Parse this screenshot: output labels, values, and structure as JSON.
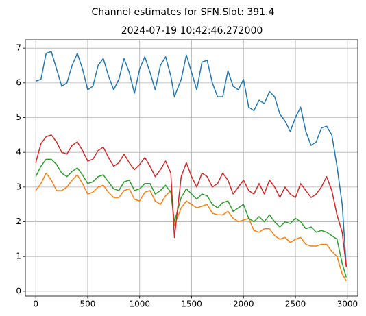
{
  "chart_data": {
    "type": "line",
    "title": "Channel estimates for SFN.Slot: 391.4",
    "subtitle": "2024-07-19 10:42:46.272000",
    "x": [
      0,
      50,
      100,
      150,
      200,
      250,
      300,
      350,
      400,
      450,
      500,
      550,
      600,
      650,
      700,
      750,
      800,
      850,
      900,
      950,
      1000,
      1050,
      1100,
      1150,
      1200,
      1250,
      1300,
      1335,
      1400,
      1450,
      1500,
      1550,
      1600,
      1650,
      1700,
      1750,
      1800,
      1850,
      1900,
      1950,
      2000,
      2050,
      2100,
      2150,
      2200,
      2250,
      2300,
      2350,
      2400,
      2450,
      2500,
      2550,
      2600,
      2650,
      2700,
      2750,
      2800,
      2850,
      2900,
      2950,
      2990
    ],
    "series": [
      {
        "color": "#1f77b4",
        "values": [
          6.05,
          6.1,
          6.85,
          6.9,
          6.4,
          5.9,
          6.0,
          6.5,
          6.85,
          6.4,
          5.8,
          5.9,
          6.5,
          6.7,
          6.2,
          5.8,
          6.1,
          6.7,
          6.3,
          5.7,
          6.4,
          6.75,
          6.3,
          5.8,
          6.5,
          6.75,
          6.2,
          5.6,
          6.1,
          6.8,
          6.3,
          5.8,
          6.6,
          6.65,
          6.0,
          5.6,
          5.6,
          6.35,
          5.9,
          5.8,
          6.1,
          5.3,
          5.2,
          5.5,
          5.4,
          5.75,
          5.6,
          5.1,
          4.9,
          4.6,
          5.0,
          5.3,
          4.6,
          4.2,
          4.3,
          4.7,
          4.75,
          4.5,
          3.6,
          2.5,
          0.7
        ]
      },
      {
        "color": "#ff7f0e",
        "values": [
          2.9,
          3.1,
          3.4,
          3.2,
          2.9,
          2.9,
          3.0,
          3.2,
          3.35,
          3.1,
          2.8,
          2.85,
          3.0,
          3.05,
          2.85,
          2.7,
          2.7,
          2.9,
          2.95,
          2.65,
          2.6,
          2.85,
          2.9,
          2.6,
          2.5,
          2.75,
          2.9,
          1.9,
          2.4,
          2.6,
          2.5,
          2.4,
          2.45,
          2.5,
          2.25,
          2.2,
          2.2,
          2.3,
          2.1,
          2.0,
          2.05,
          2.1,
          1.75,
          1.7,
          1.8,
          1.8,
          1.6,
          1.5,
          1.55,
          1.4,
          1.5,
          1.55,
          1.35,
          1.3,
          1.3,
          1.35,
          1.35,
          1.15,
          1.0,
          0.5,
          0.3
        ]
      },
      {
        "color": "#2ca02c",
        "values": [
          3.3,
          3.6,
          3.8,
          3.8,
          3.65,
          3.4,
          3.3,
          3.45,
          3.55,
          3.35,
          3.1,
          3.15,
          3.3,
          3.35,
          3.15,
          2.95,
          2.9,
          3.15,
          3.2,
          2.9,
          2.95,
          3.1,
          3.1,
          2.8,
          2.9,
          3.05,
          2.85,
          2.0,
          2.7,
          2.95,
          2.8,
          2.65,
          2.8,
          2.75,
          2.5,
          2.4,
          2.55,
          2.6,
          2.3,
          2.4,
          2.5,
          2.1,
          2.0,
          2.15,
          2.0,
          2.2,
          2.0,
          1.85,
          2.0,
          1.95,
          2.1,
          2.0,
          1.8,
          1.85,
          1.7,
          1.75,
          1.7,
          1.6,
          1.5,
          0.8,
          0.4
        ]
      },
      {
        "color": "#d62728",
        "values": [
          3.7,
          4.25,
          4.45,
          4.5,
          4.3,
          4.0,
          3.95,
          4.2,
          4.3,
          4.05,
          3.75,
          3.8,
          4.05,
          4.15,
          3.85,
          3.6,
          3.7,
          3.95,
          3.7,
          3.5,
          3.65,
          3.85,
          3.6,
          3.3,
          3.5,
          3.75,
          3.4,
          1.55,
          3.3,
          3.7,
          3.3,
          3.0,
          3.4,
          3.3,
          3.0,
          3.1,
          3.4,
          3.2,
          2.8,
          3.0,
          3.2,
          2.9,
          2.8,
          3.1,
          2.8,
          3.2,
          3.0,
          2.7,
          3.0,
          2.8,
          2.7,
          3.1,
          2.9,
          2.7,
          2.8,
          3.0,
          3.3,
          2.9,
          2.2,
          1.7,
          0.7
        ]
      }
    ],
    "xlim": [
      -100,
      3100
    ],
    "xticks": [
      0,
      500,
      1000,
      1500,
      2000,
      2500,
      3000
    ],
    "ylim": [
      -0.14,
      7.24
    ],
    "yticks": [
      0,
      1,
      2,
      3,
      4,
      5,
      6,
      7
    ],
    "grid": true
  }
}
